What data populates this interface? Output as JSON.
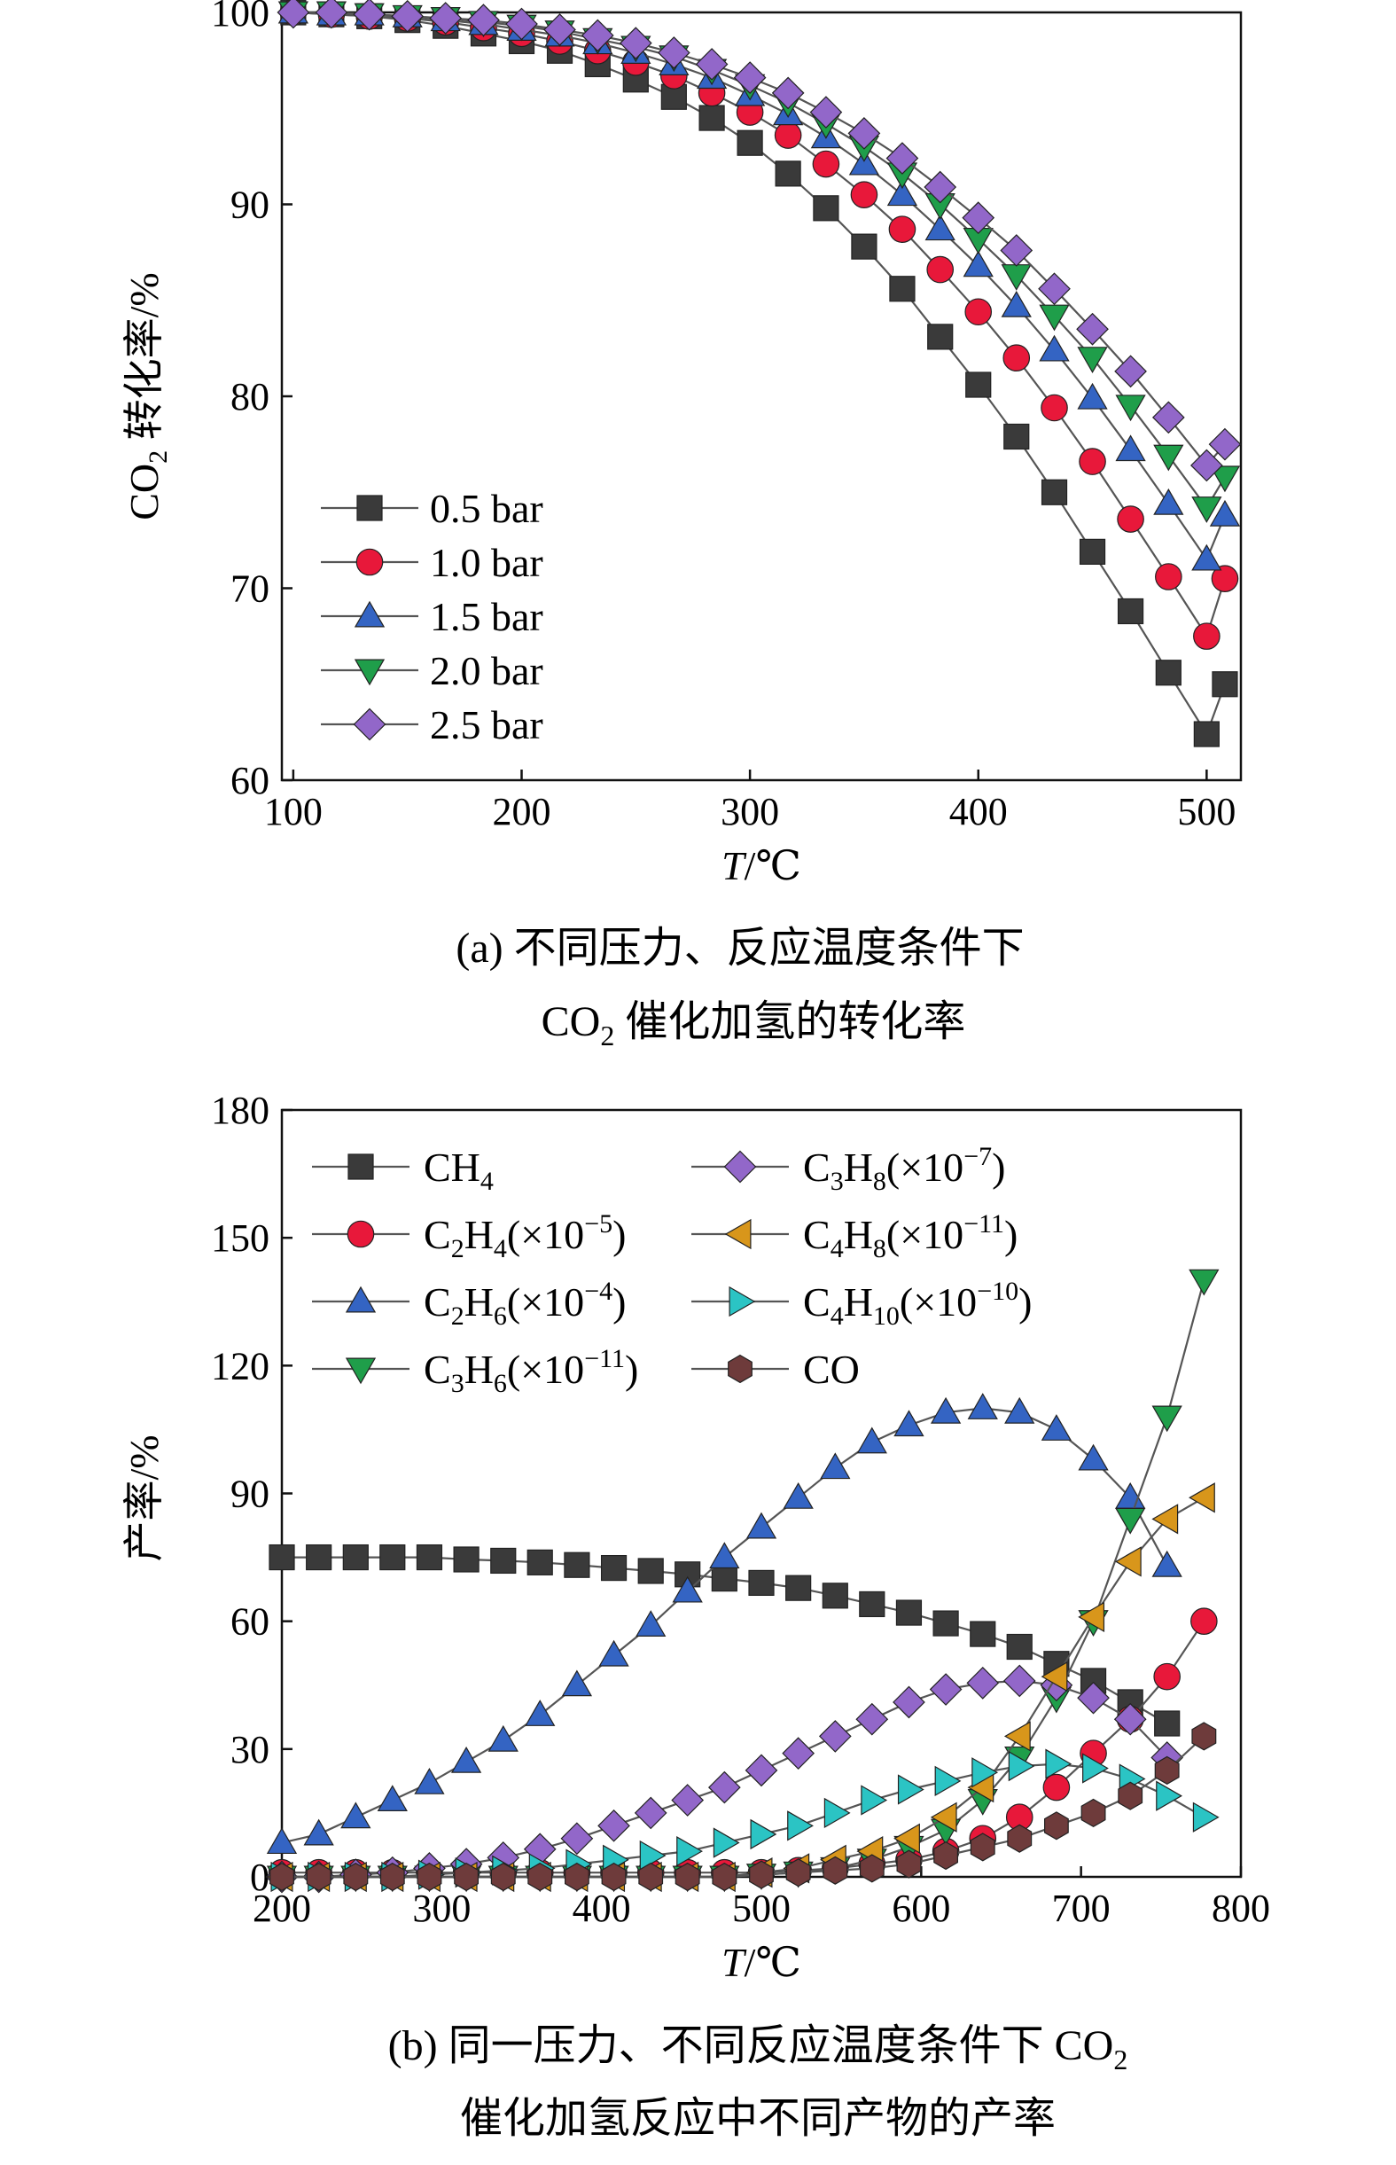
{
  "colors": {
    "0.5 bar": "#3a3a3a",
    "1.0 bar": "#e8183a",
    "1.5 bar": "#3464c3",
    "2.0 bar": "#1f9e4a",
    "2.5 bar": "#9267c9",
    "CH4": "#3a3a3a",
    "C2H4": "#e8183a",
    "C2H6": "#3464c3",
    "C3H6": "#1f9e4a",
    "C3H8": "#9267c9",
    "C4H8": "#d8961b",
    "C4H10": "#2bc4c4",
    "CO": "#6e3b3b"
  },
  "chart_data": [
    {
      "type": "line",
      "ylabel_main": "CO",
      "ylabel_sub": "2",
      "ylabel_rest": " 转化率/%",
      "xlabel_italic": "T",
      "xlabel_rest": "/℃",
      "xlim": [
        95,
        515
      ],
      "ylim": [
        60,
        100
      ],
      "xticks": [
        100,
        200,
        300,
        400,
        500
      ],
      "yticks": [
        60,
        70,
        80,
        90,
        100
      ],
      "legend_position": "bottom-left",
      "caption_line1": "(a) 不同压力、反应温度条件下",
      "caption_line2_main": "CO",
      "caption_line2_sub": "2",
      "caption_line2_rest": " 催化加氢的转化率",
      "x": [
        100,
        116.7,
        133.3,
        150,
        166.7,
        183.3,
        200,
        216.7,
        233.3,
        250,
        266.7,
        283.3,
        300,
        316.7,
        333.3,
        350,
        366.7,
        383.3,
        400,
        416.7,
        433.3,
        450,
        466.7,
        483.3,
        500,
        508
      ],
      "series": [
        {
          "name": "0.5 bar",
          "marker": "square",
          "values": [
            100,
            99.9,
            99.8,
            99.6,
            99.3,
            98.9,
            98.5,
            98.0,
            97.3,
            96.5,
            95.6,
            94.5,
            93.2,
            91.6,
            89.8,
            87.8,
            85.6,
            83.1,
            80.6,
            77.9,
            75.0,
            71.9,
            68.8,
            65.6,
            62.4,
            65.0
          ]
        },
        {
          "name": "1.0 bar",
          "marker": "circle",
          "values": [
            100,
            99.9,
            99.8,
            99.7,
            99.5,
            99.2,
            98.9,
            98.5,
            98.0,
            97.4,
            96.7,
            95.8,
            94.8,
            93.6,
            92.1,
            90.5,
            88.7,
            86.6,
            84.4,
            82.0,
            79.4,
            76.6,
            73.6,
            70.6,
            67.5,
            70.5
          ]
        },
        {
          "name": "1.5 bar",
          "marker": "triangle-up",
          "values": [
            100,
            99.9,
            99.9,
            99.8,
            99.6,
            99.4,
            99.1,
            98.8,
            98.4,
            97.9,
            97.3,
            96.6,
            95.7,
            94.7,
            93.5,
            92.1,
            90.5,
            88.7,
            86.8,
            84.7,
            82.4,
            79.9,
            77.2,
            74.4,
            71.5,
            73.8
          ]
        },
        {
          "name": "2.0 bar",
          "marker": "triangle-down",
          "values": [
            100,
            100,
            99.9,
            99.8,
            99.7,
            99.5,
            99.3,
            99.0,
            98.6,
            98.2,
            97.7,
            97.0,
            96.2,
            95.3,
            94.2,
            93.0,
            91.6,
            90.0,
            88.2,
            86.3,
            84.2,
            82.0,
            79.5,
            76.9,
            74.2,
            75.8
          ]
        },
        {
          "name": "2.5 bar",
          "marker": "diamond",
          "values": [
            100,
            100,
            99.9,
            99.8,
            99.7,
            99.6,
            99.4,
            99.1,
            98.8,
            98.4,
            97.9,
            97.3,
            96.6,
            95.8,
            94.8,
            93.7,
            92.4,
            90.9,
            89.3,
            87.6,
            85.6,
            83.5,
            81.3,
            78.9,
            76.4,
            77.5
          ]
        }
      ]
    },
    {
      "type": "line",
      "ylabel": "产率/%",
      "xlabel_italic": "T",
      "xlabel_rest": "/℃",
      "xlim": [
        200,
        800
      ],
      "ylim": [
        0,
        180
      ],
      "xticks": [
        200,
        300,
        400,
        500,
        600,
        700,
        800
      ],
      "yticks": [
        0,
        30,
        60,
        90,
        120,
        150,
        180
      ],
      "legend_position": "top, two columns",
      "caption_line1_main": "(b) 同一压力、不同反应温度条件下 CO",
      "caption_line1_sub": "2",
      "caption_line2": "催化加氢反应中不同产物的产率",
      "x": [
        200,
        223.1,
        246.2,
        269.2,
        292.3,
        315.4,
        338.5,
        361.5,
        384.6,
        407.7,
        430.8,
        453.8,
        476.9,
        500,
        523.1,
        546.2,
        569.2,
        592.3,
        615.4,
        638.5,
        661.5,
        684.6,
        707.7,
        730.8,
        753.8,
        776.9,
        800
      ],
      "series": [
        {
          "name": "CH4",
          "legend_main": "CH",
          "legend_sub": "4",
          "legend_rest": "",
          "legend_sup": "",
          "legend_end": "",
          "marker": "square",
          "values": [
            75,
            75,
            75,
            75,
            75,
            74.5,
            74.2,
            73.8,
            73.2,
            72.5,
            71.8,
            71,
            70,
            69,
            67.8,
            66,
            64,
            62,
            59.5,
            57,
            54,
            50,
            46,
            41,
            36,
            null,
            null
          ]
        },
        {
          "name": "C2H4",
          "legend_main": "C",
          "legend_sub": "2",
          "legend_rest": "H",
          "legend_sub2": "4",
          "legend_pre": "(×10",
          "legend_sup": "−5",
          "legend_end": ")",
          "marker": "circle",
          "values": [
            1,
            1,
            1,
            1,
            1,
            1,
            1,
            1,
            1,
            1,
            1,
            1,
            1,
            1,
            1.5,
            2,
            3,
            4,
            6,
            9,
            14,
            21,
            29,
            37,
            47,
            60,
            null
          ]
        },
        {
          "name": "C2H6",
          "legend_main": "C",
          "legend_sub": "2",
          "legend_rest": "H",
          "legend_sub2": "6",
          "legend_pre": "(×10",
          "legend_sup": "−4",
          "legend_end": ")",
          "marker": "triangle-up",
          "values": [
            8,
            10,
            14,
            18,
            22,
            27,
            32,
            38,
            45,
            52,
            59,
            67,
            75,
            82,
            89,
            96,
            102,
            106,
            109,
            110,
            109,
            105,
            98,
            89,
            73,
            null,
            null
          ]
        },
        {
          "name": "C3H6",
          "legend_main": "C",
          "legend_sub": "3",
          "legend_rest": "H",
          "legend_sub2": "6",
          "legend_pre": "(×10",
          "legend_sup": "−11",
          "legend_end": ")",
          "marker": "triangle-down",
          "values": [
            0,
            0,
            0,
            0,
            0,
            0,
            0,
            0,
            0,
            0,
            0,
            0,
            0,
            0.5,
            1,
            2,
            4,
            7,
            11,
            18,
            28,
            42,
            60,
            84,
            108,
            140,
            null
          ]
        },
        {
          "name": "C3H8",
          "legend_main": "C",
          "legend_sub": "3",
          "legend_rest": "H",
          "legend_sub2": "8",
          "legend_pre": "(×10",
          "legend_sup": "−7",
          "legend_end": ")",
          "marker": "diamond",
          "values": [
            0,
            0,
            0.5,
            1,
            2,
            3,
            4.5,
            6.5,
            9,
            12,
            15,
            18,
            21,
            25,
            29,
            33,
            37,
            41,
            44,
            45.5,
            46,
            45,
            42,
            37,
            28,
            null,
            null
          ]
        },
        {
          "name": "C4H8",
          "legend_main": "C",
          "legend_sub": "4",
          "legend_rest": "H",
          "legend_sub2": "8",
          "legend_pre": "(×10",
          "legend_sup": "−11",
          "legend_end": ")",
          "marker": "triangle-left",
          "values": [
            0,
            0,
            0,
            0,
            0,
            0,
            0,
            0,
            0,
            0,
            0,
            0,
            0,
            1,
            2,
            4,
            6,
            9,
            14,
            21,
            33,
            47,
            61,
            74,
            84,
            89,
            null
          ]
        },
        {
          "name": "C4H10",
          "legend_main": "C",
          "legend_sub": "4",
          "legend_rest": "H",
          "legend_sub2": "10",
          "legend_pre": "(×10",
          "legend_sup": "−10",
          "legend_end": ")",
          "marker": "triangle-right",
          "values": [
            0,
            0,
            0,
            0,
            0.5,
            1,
            1.5,
            2,
            3,
            4,
            5,
            6,
            8,
            10,
            12,
            15,
            18,
            20.5,
            22.5,
            24.5,
            26,
            26.5,
            25.5,
            23,
            19,
            14,
            null
          ]
        },
        {
          "name": "CO",
          "legend_main": "CO",
          "legend_sub": "",
          "legend_rest": "",
          "legend_sub2": "",
          "legend_pre": "",
          "legend_sup": "",
          "legend_end": "",
          "marker": "hexagon",
          "values": [
            0,
            0,
            0,
            0,
            0,
            0,
            0,
            0,
            0,
            0,
            0,
            0,
            0,
            0.5,
            1,
            1.5,
            2,
            3,
            5,
            7,
            9,
            12,
            15,
            19,
            25,
            33,
            null
          ]
        }
      ]
    }
  ]
}
